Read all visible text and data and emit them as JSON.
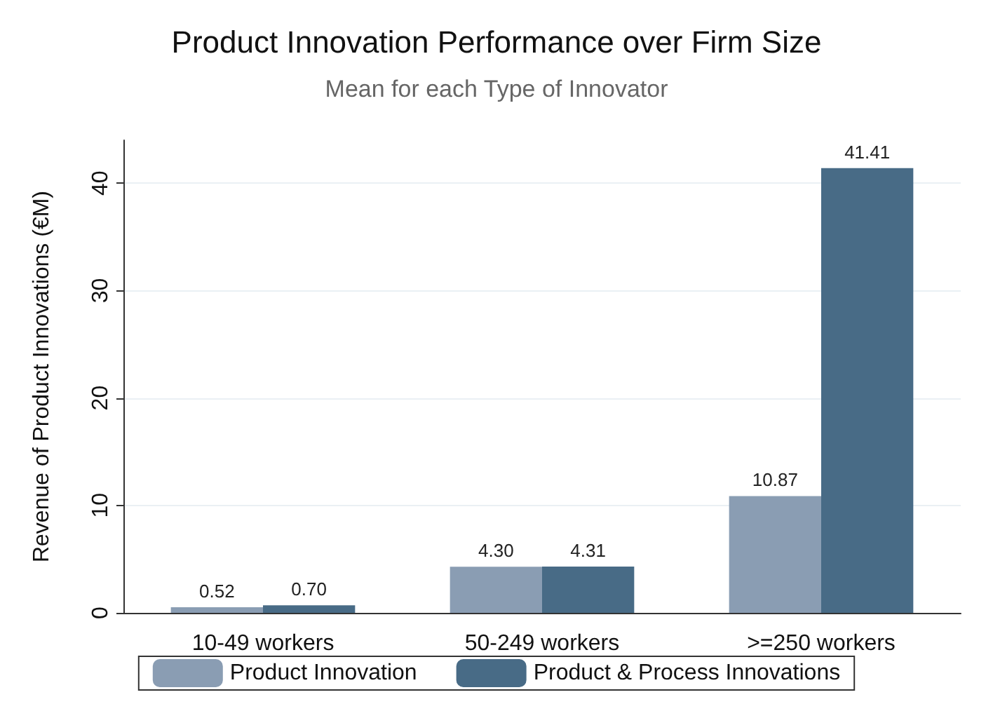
{
  "chart_data": {
    "type": "bar",
    "title": "Product Innovation Performance over Firm Size",
    "subtitle": "Mean for each Type of Innovator",
    "ylabel": "Revenue of Product Innovations (€M)",
    "categories": [
      "10-49 workers",
      "50-249 workers",
      ">=250 workers"
    ],
    "series": [
      {
        "name": "Product Innovation",
        "color": "#8a9db3",
        "values": [
          0.52,
          4.3,
          10.87
        ],
        "value_labels": [
          "0.52",
          "4.30",
          "10.87"
        ]
      },
      {
        "name": "Product & Process Innovations",
        "color": "#486b86",
        "values": [
          0.7,
          4.31,
          41.41
        ],
        "value_labels": [
          "0.70",
          "4.31",
          "41.41"
        ]
      }
    ],
    "ylim": [
      0,
      44
    ],
    "yticks": [
      0,
      10,
      20,
      30,
      40
    ],
    "grid": "y",
    "legend": "bottom"
  }
}
